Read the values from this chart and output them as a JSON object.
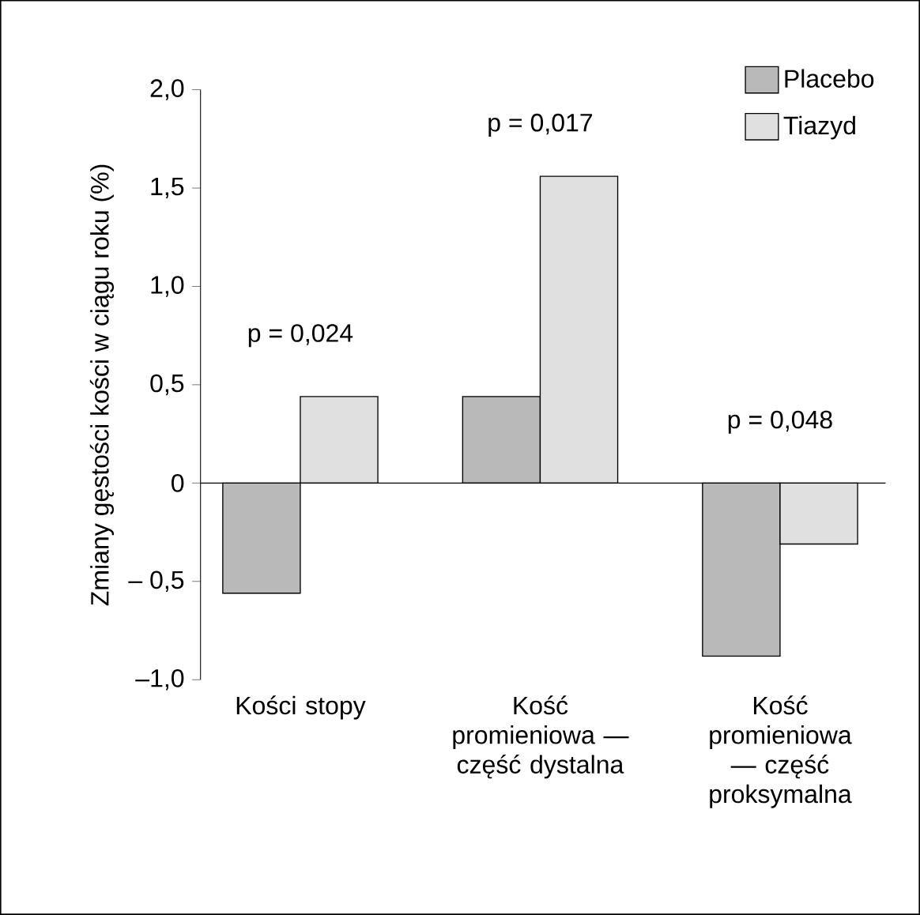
{
  "chart_data": {
    "type": "bar",
    "ylabel": "Zmiany gęstości kości w ciągu roku (%)",
    "categories": [
      "Kości stopy",
      "Kość promieniowa — część dystalna",
      "Kość promieniowa — część proksymalna"
    ],
    "series": [
      {
        "name": "Placebo",
        "color": "#b9b9b9",
        "values": [
          -0.56,
          0.44,
          -0.88
        ]
      },
      {
        "name": "Tiazyd",
        "color": "#e0e0e0",
        "values": [
          0.44,
          1.56,
          -0.31
        ]
      }
    ],
    "ylim": [
      -1.0,
      2.0
    ],
    "yticks": [
      {
        "value": -1.0,
        "label": "–1,0"
      },
      {
        "value": -0.5,
        "label": "– 0,5"
      },
      0,
      {
        "value": 0.5,
        "label": "0,5"
      },
      {
        "value": 1.0,
        "label": "1,0"
      },
      {
        "value": 1.5,
        "label": "1,5"
      },
      {
        "value": 2.0,
        "label": "2,0"
      }
    ],
    "annotations": [
      "p = 0,024",
      "p = 0,017",
      "p = 0,048"
    ],
    "legend": "top right"
  }
}
